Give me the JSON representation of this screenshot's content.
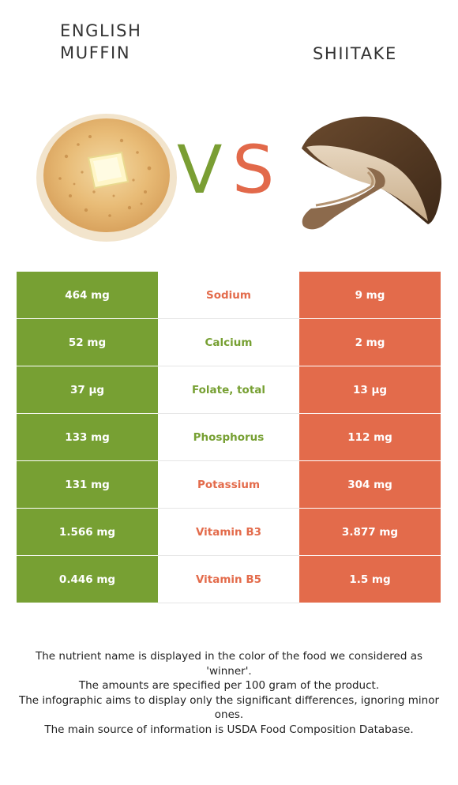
{
  "left_food": {
    "name": "ENGLISH\nMUFFIN",
    "color": "#77a033"
  },
  "right_food": {
    "name": "SHIITAKE",
    "color": "#e36b4b"
  },
  "vs": {
    "v": "V",
    "s": "S"
  },
  "rows": [
    {
      "nutrient": "Sodium",
      "left": "464 mg",
      "right": "9 mg",
      "winner": "right"
    },
    {
      "nutrient": "Calcium",
      "left": "52 mg",
      "right": "2 mg",
      "winner": "left"
    },
    {
      "nutrient": "Folate, total",
      "left": "37 µg",
      "right": "13 µg",
      "winner": "left"
    },
    {
      "nutrient": "Phosphorus",
      "left": "133 mg",
      "right": "112 mg",
      "winner": "left"
    },
    {
      "nutrient": "Potassium",
      "left": "131 mg",
      "right": "304 mg",
      "winner": "right"
    },
    {
      "nutrient": "Vitamin B3",
      "left": "1.566 mg",
      "right": "3.877 mg",
      "winner": "right"
    },
    {
      "nutrient": "Vitamin B5",
      "left": "0.446 mg",
      "right": "1.5 mg",
      "winner": "right"
    }
  ],
  "footnote": [
    "The nutrient name is displayed in the color of the food we considered as 'winner'.",
    "The amounts are specified per 100 gram of the product.",
    "The infographic aims to display only the significant differences, ignoring minor ones.",
    "The main source of information is USDA Food Composition Database."
  ]
}
